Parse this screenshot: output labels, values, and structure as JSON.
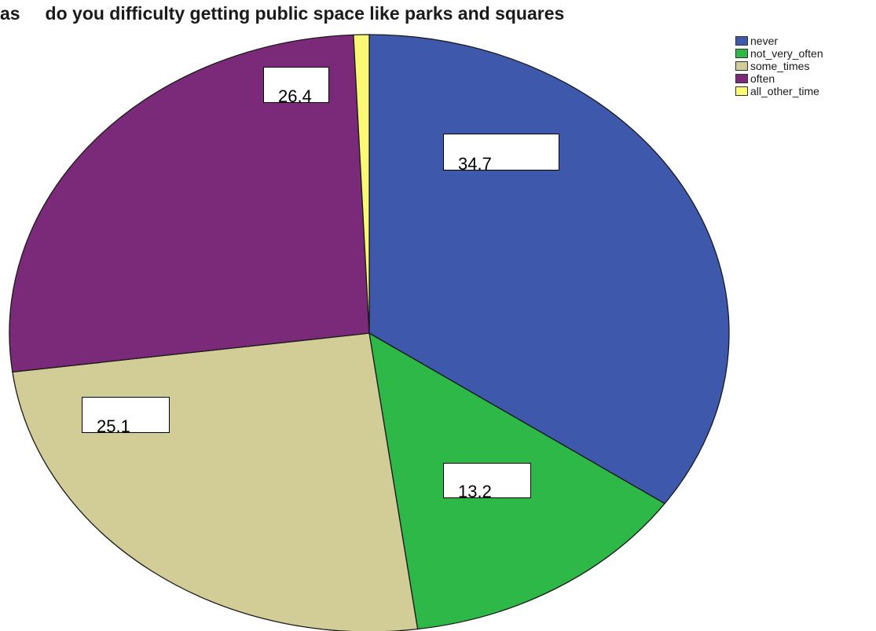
{
  "chart_data": {
    "type": "pie",
    "title": "as     do you difficulty getting public space like parks and squares",
    "categories": [
      "never",
      "not_very_often",
      "some_times",
      "often",
      "all_other_time"
    ],
    "values": [
      34.7,
      13.2,
      25.1,
      26.4,
      0.7
    ],
    "data_labels": [
      "34.7",
      "13.2",
      "25.1",
      "26.4",
      ""
    ],
    "colors": [
      "#3e58ac",
      "#2eb848",
      "#d2cc96",
      "#7b2a79",
      "#fbf873"
    ],
    "start_angle_deg": 0,
    "direction": "clockwise",
    "legend_position": "top-right"
  }
}
